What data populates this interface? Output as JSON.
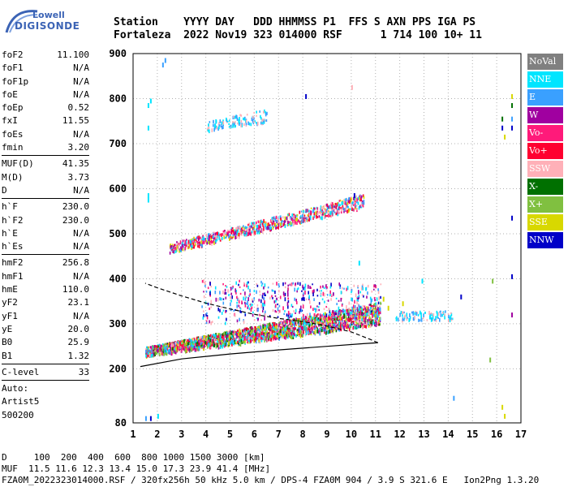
{
  "logo": {
    "line1": "Lowell",
    "line2": "DIGISONDE"
  },
  "header": {
    "line1": "Station    YYYY DAY   DDD HHMMSS P1  FFS S AXN PPS IGA PS",
    "line2": "Fortaleza  2022 Nov19 323 014000 RSF      1 714 100 10+ 11"
  },
  "params": [
    {
      "k": "foF2",
      "v": "11.100"
    },
    {
      "k": "foF1",
      "v": "N/A"
    },
    {
      "k": "foF1p",
      "v": "N/A"
    },
    {
      "k": "foE",
      "v": "N/A"
    },
    {
      "k": "foEp",
      "v": "0.52"
    },
    {
      "k": "fxI",
      "v": "11.55"
    },
    {
      "k": "foEs",
      "v": "N/A"
    },
    {
      "k": "fmin",
      "v": "3.20"
    },
    {
      "k": "MUF(D)",
      "v": "41.35"
    },
    {
      "k": "M(D)",
      "v": "3.73"
    },
    {
      "k": "D",
      "v": "N/A"
    },
    {
      "k": "h`F",
      "v": "230.0"
    },
    {
      "k": "h`F2",
      "v": "230.0"
    },
    {
      "k": "h`E",
      "v": "N/A"
    },
    {
      "k": "h`Es",
      "v": "N/A"
    },
    {
      "k": "hmF2",
      "v": "256.8"
    },
    {
      "k": "hmF1",
      "v": "N/A"
    },
    {
      "k": "hmE",
      "v": "110.0"
    },
    {
      "k": "yF2",
      "v": "23.1"
    },
    {
      "k": "yF1",
      "v": "N/A"
    },
    {
      "k": "yE",
      "v": "20.0"
    },
    {
      "k": "B0",
      "v": "25.9"
    },
    {
      "k": "B1",
      "v": "1.32"
    },
    {
      "k": "C-level",
      "v": "33"
    }
  ],
  "auto": {
    "line1": "Auto:",
    "line2": "Artist5",
    "line3": "500200"
  },
  "legend": [
    {
      "label": "NoVal",
      "color": "#808080"
    },
    {
      "label": "NNE",
      "color": "#00e5ff"
    },
    {
      "label": "E",
      "color": "#3aa0ff"
    },
    {
      "label": "W",
      "color": "#a000a0"
    },
    {
      "label": "Vo-",
      "color": "#ff1a7a"
    },
    {
      "label": "Vo+",
      "color": "#ff0030"
    },
    {
      "label": "SSW",
      "color": "#ffb0b8"
    },
    {
      "label": "X-",
      "color": "#007000"
    },
    {
      "label": "X+",
      "color": "#80c040"
    },
    {
      "label": "SSE",
      "color": "#d8d800"
    },
    {
      "label": "NNW",
      "color": "#0000c8"
    }
  ],
  "bottom": {
    "line1": "D     100  200  400  600  800 1000 1500 3000 [km]",
    "line2": "MUF  11.5 11.6 12.3 13.4 15.0 17.3 23.9 41.4 [MHz]",
    "line3": "FZA0M_2022323014000.RSF / 320fx256h 50 kHz 5.0 km / DPS-4 FZA0M 904 / 3.9 S 321.6 E   Ion2Png 1.3.20"
  },
  "chart_data": {
    "type": "scatter",
    "xlim": [
      1,
      17
    ],
    "ylim": [
      80,
      900
    ],
    "x_ticks": [
      1,
      2,
      3,
      4,
      5,
      6,
      7,
      8,
      9,
      10,
      11,
      12,
      13,
      14,
      15,
      16,
      17
    ],
    "y_ticks": [
      80,
      200,
      300,
      400,
      500,
      600,
      700,
      800,
      900
    ],
    "grid": true,
    "legend_placement": "right",
    "clusters": [
      {
        "name": "F2 trace O-mode",
        "x_range": [
          1.5,
          11.2
        ],
        "height_start": [
          230,
          250
        ],
        "height_end": [
          300,
          350
        ],
        "count": 2600,
        "colors": [
          "#ff0030",
          "#ff1a7a",
          "#a000a0",
          "#3aa0ff",
          "#00e5ff",
          "#ffb0b8",
          "#d8d800",
          "#007000",
          "#80c040"
        ]
      },
      {
        "name": "F2 echo spread",
        "x_range": [
          3.8,
          11.2
        ],
        "height_start": [
          300,
          400
        ],
        "height_end": [
          330,
          390
        ],
        "count": 450,
        "colors": [
          "#a000a0",
          "#ff1a7a",
          "#3aa0ff",
          "#00e5ff",
          "#ffb0b8",
          "#0000c8"
        ]
      },
      {
        "name": "Second hop",
        "x_range": [
          2.5,
          10.5
        ],
        "height_start": [
          460,
          480
        ],
        "height_end": [
          560,
          590
        ],
        "count": 900,
        "colors": [
          "#00e5ff",
          "#3aa0ff",
          "#ff1a7a",
          "#a000a0",
          "#d8d800",
          "#ffb0b8",
          "#ff0030"
        ]
      },
      {
        "name": "Third hop",
        "x_range": [
          4.0,
          6.5
        ],
        "height_start": [
          730,
          750
        ],
        "height_end": [
          750,
          780
        ],
        "count": 130,
        "colors": [
          "#00e5ff",
          "#3aa0ff",
          "#ffb0b8"
        ]
      },
      {
        "name": "Oblique echoes",
        "x_range": [
          11.8,
          14.2
        ],
        "height_start": [
          310,
          330
        ],
        "height_end": [
          310,
          330
        ],
        "count": 90,
        "colors": [
          "#00e5ff",
          "#3aa0ff",
          "#ffb0b8"
        ]
      }
    ],
    "isolated_points": [
      {
        "x": 1.6,
        "y": 590,
        "c": "#00e5ff"
      },
      {
        "x": 1.6,
        "y": 580,
        "c": "#00e5ff"
      },
      {
        "x": 1.6,
        "y": 790,
        "c": "#00e5ff"
      },
      {
        "x": 1.7,
        "y": 800,
        "c": "#00e5ff"
      },
      {
        "x": 1.6,
        "y": 740,
        "c": "#00e5ff"
      },
      {
        "x": 2.2,
        "y": 880,
        "c": "#3aa0ff"
      },
      {
        "x": 2.3,
        "y": 890,
        "c": "#3aa0ff"
      },
      {
        "x": 1.5,
        "y": 95,
        "c": "#3aa0ff"
      },
      {
        "x": 1.7,
        "y": 95,
        "c": "#0000c8"
      },
      {
        "x": 2.0,
        "y": 100,
        "c": "#00e5ff"
      },
      {
        "x": 16.2,
        "y": 760,
        "c": "#007000"
      },
      {
        "x": 16.2,
        "y": 740,
        "c": "#0000c8"
      },
      {
        "x": 16.3,
        "y": 720,
        "c": "#d8d800"
      },
      {
        "x": 16.6,
        "y": 810,
        "c": "#d8d800"
      },
      {
        "x": 16.6,
        "y": 790,
        "c": "#007000"
      },
      {
        "x": 16.6,
        "y": 760,
        "c": "#3aa0ff"
      },
      {
        "x": 16.6,
        "y": 740,
        "c": "#0000c8"
      },
      {
        "x": 16.6,
        "y": 540,
        "c": "#0000c8"
      },
      {
        "x": 16.6,
        "y": 410,
        "c": "#0000c8"
      },
      {
        "x": 16.6,
        "y": 325,
        "c": "#a000a0"
      },
      {
        "x": 16.2,
        "y": 120,
        "c": "#d8d800"
      },
      {
        "x": 16.3,
        "y": 100,
        "c": "#d8d800"
      },
      {
        "x": 15.7,
        "y": 225,
        "c": "#80c040"
      },
      {
        "x": 15.8,
        "y": 400,
        "c": "#80c040"
      },
      {
        "x": 14.2,
        "y": 140,
        "c": "#3aa0ff"
      },
      {
        "x": 14.5,
        "y": 365,
        "c": "#0000c8"
      },
      {
        "x": 12.9,
        "y": 400,
        "c": "#00e5ff"
      },
      {
        "x": 10.1,
        "y": 590,
        "c": "#0000c8"
      },
      {
        "x": 10.0,
        "y": 830,
        "c": "#ffb0b8"
      },
      {
        "x": 11.3,
        "y": 360,
        "c": "#d8d800"
      },
      {
        "x": 11.5,
        "y": 340,
        "c": "#d8d800"
      },
      {
        "x": 12.1,
        "y": 350,
        "c": "#d8d800"
      },
      {
        "x": 8.1,
        "y": 810,
        "c": "#0000c8"
      },
      {
        "x": 10.3,
        "y": 440,
        "c": "#00e5ff"
      }
    ],
    "profile_curve": [
      [
        1.3,
        205
      ],
      [
        3,
        222
      ],
      [
        5,
        233
      ],
      [
        7,
        242
      ],
      [
        9,
        250
      ],
      [
        10.5,
        256
      ],
      [
        11.1,
        258
      ],
      [
        10.8,
        265
      ],
      [
        10,
        282
      ],
      [
        9,
        295
      ],
      [
        8,
        305
      ],
      [
        7,
        312
      ],
      [
        6,
        321
      ],
      [
        5,
        333
      ],
      [
        4,
        346
      ],
      [
        3,
        362
      ],
      [
        2,
        380
      ],
      [
        1.5,
        390
      ]
    ]
  }
}
